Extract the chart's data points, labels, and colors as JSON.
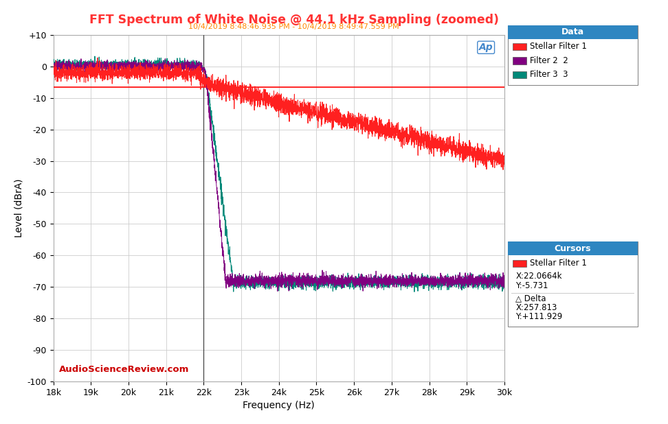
{
  "title": "FFT Spectrum of White Noise @ 44.1 kHz Sampling (zoomed)",
  "subtitle": "10/4/2019 8:48:46.935 PM - 10/4/2019 8:49:47.559 PM",
  "title_color": "#FF3333",
  "subtitle_color": "#FF8800",
  "xlabel": "Frequency (Hz)",
  "ylabel": "Level (dBrA)",
  "xlim": [
    18000,
    30000
  ],
  "ylim": [
    -100,
    10
  ],
  "yticks": [
    10,
    0,
    -10,
    -20,
    -30,
    -40,
    -50,
    -60,
    -70,
    -80,
    -90,
    -100
  ],
  "xticks": [
    18000,
    19000,
    20000,
    21000,
    22000,
    23000,
    24000,
    25000,
    26000,
    27000,
    28000,
    29000,
    30000
  ],
  "xtick_labels": [
    "18k",
    "19k",
    "20k",
    "21k",
    "22k",
    "23k",
    "24k",
    "25k",
    "26k",
    "27k",
    "28k",
    "29k",
    "30k"
  ],
  "ytick_labels": [
    "+10",
    "0",
    "-10",
    "-20",
    "-30",
    "-40",
    "-50",
    "-60",
    "-70",
    "-80",
    "-90",
    "-100"
  ],
  "bg_color": "#FFFFFF",
  "plot_bg_color": "#FFFFFF",
  "grid_color": "#CCCCCC",
  "filter1_color": "#FF2020",
  "filter2_color": "#800080",
  "filter3_color": "#008878",
  "ref_line_color": "#FF0000",
  "ref_line_y": -6.5,
  "cursor_line_x": 22000,
  "watermark_color": "#CC0000",
  "watermark_text": "AudioScienceReview.com",
  "legend_title": "Data",
  "legend_entries": [
    "Stellar Filter 1",
    "Filter 2  2",
    "Filter 3  3"
  ],
  "cursor_title": "Cursors",
  "cursor_label": "Stellar Filter 1",
  "cursor_x": "X:22.0664k",
  "cursor_y": "Y:-5.731",
  "delta_label": "△ Delta",
  "delta_x": "X:257.813",
  "delta_y": "Y:+111.929",
  "legend_header_color": "#2E86C1",
  "ap_logo_color": "#4488CC"
}
